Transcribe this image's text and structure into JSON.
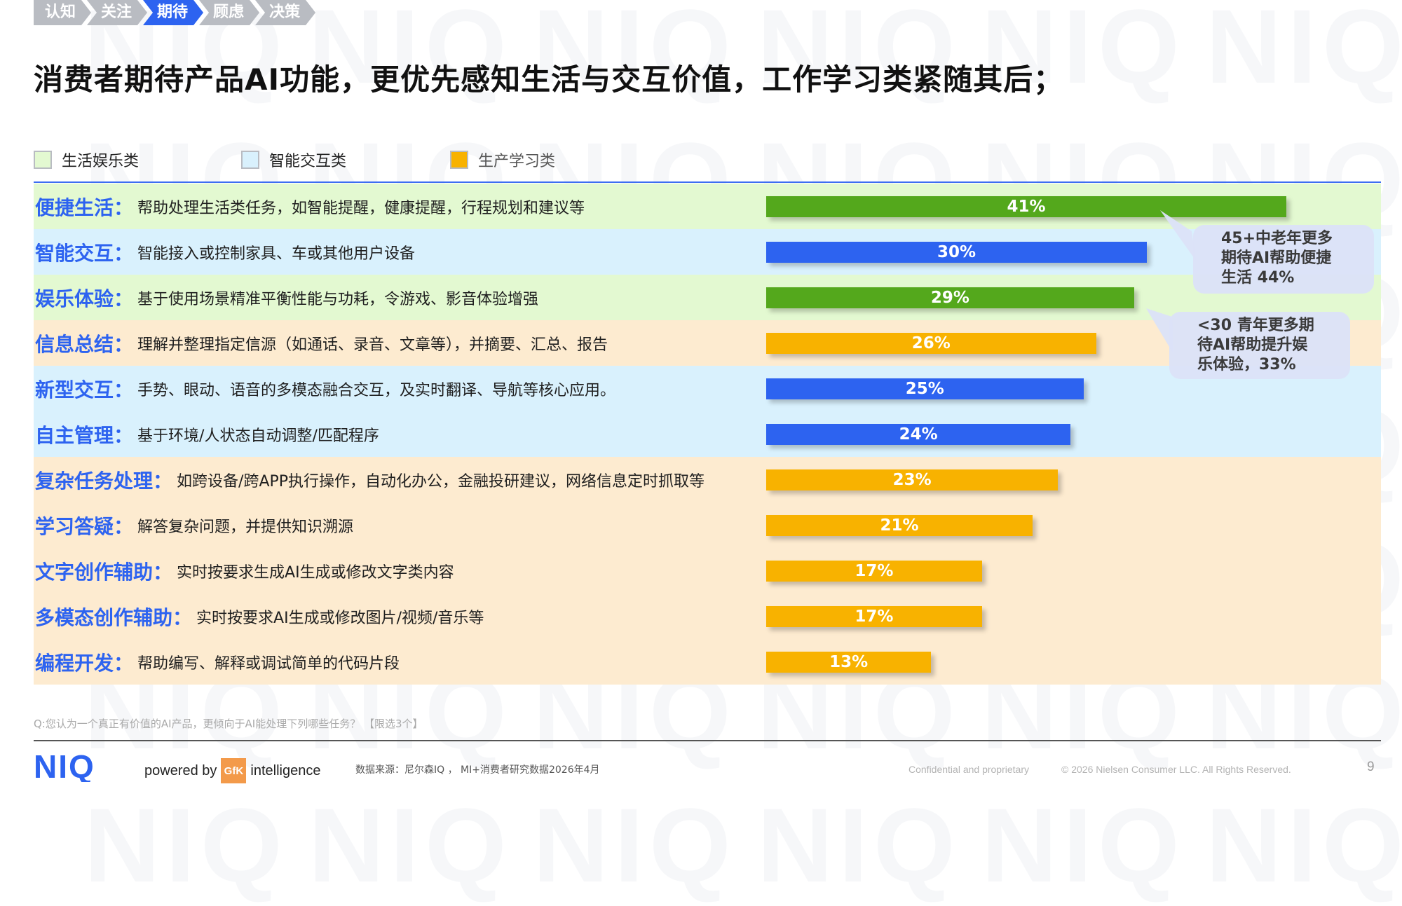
{
  "breadcrumb": {
    "steps": [
      {
        "label": "认知",
        "active": false
      },
      {
        "label": "关注",
        "active": false
      },
      {
        "label": "期待",
        "active": true
      },
      {
        "label": "顾虑",
        "active": false
      },
      {
        "label": "决策",
        "active": false
      }
    ]
  },
  "watermark_text": "NIQ",
  "page": {
    "title": "消费者期待产品AI功能，更优先感知生活与交互价值，工作学习类紧随其后；",
    "question": "Q:您认为一个真正有价值的AI产品，更倾向于AI能处理下列哪些任务？ 【限选3个】",
    "source": "数据来源：尼尔森IQ ， MI+消费者研究数据2026年4月",
    "confidential": "Confidential and proprietary",
    "copyright": "© 2026 Nielsen Consumer LLC. All Rights Reserved.",
    "page_number": "9"
  },
  "brand": {
    "logo_text": "NIQ",
    "powered_by": "powered by",
    "gfk": "GfK",
    "intelligence": "intelligence"
  },
  "colors": {
    "life": "#54a81c",
    "interaction": "#2d63f0",
    "work": "#f8b200",
    "life_bg": "#e3f9d1",
    "interaction_bg": "#d9f1fd",
    "work_bg": "#fdebd0",
    "accent": "#2d63f0"
  },
  "legend": [
    {
      "label": "生活娱乐类",
      "category": "life"
    },
    {
      "label": "智能交互类",
      "category": "interaction"
    },
    {
      "label": "生产学习类",
      "category": "work"
    }
  ],
  "chart_data": {
    "type": "bar",
    "orientation": "horizontal",
    "unit": "%",
    "xlim": [
      0,
      45
    ],
    "grid": false,
    "legend_position": "top-left",
    "rows": [
      {
        "name": "便捷生活",
        "desc": "帮助处理生活类任务，如智能提醒，健康提醒，行程规划和建议等",
        "value": 41,
        "label": "41%",
        "category": "life"
      },
      {
        "name": "智能交互",
        "desc": "智能接入或控制家具、车或其他用户设备",
        "value": 30,
        "label": "30%",
        "category": "interaction"
      },
      {
        "name": "娱乐体验",
        "desc": "基于使用场景精准平衡性能与功耗，令游戏、影音体验增强",
        "value": 29,
        "label": "29%",
        "category": "life"
      },
      {
        "name": "信息总结",
        "desc": "理解并整理指定信源（如通话、录音、文章等），并摘要、汇总、报告",
        "value": 26,
        "label": "26%",
        "category": "work"
      },
      {
        "name": "新型交互",
        "desc": "手势、眼动、语音的多模态融合交互，及实时翻译、导航等核心应用。",
        "value": 25,
        "label": "25%",
        "category": "interaction"
      },
      {
        "name": "自主管理",
        "desc": "基于环境/人状态自动调整/匹配程序",
        "value": 24,
        "label": "24%",
        "category": "interaction"
      },
      {
        "name": "复杂任务处理",
        "desc": "如跨设备/跨APP执行操作，自动化办公，金融投研建议，网络信息定时抓取等",
        "value": 23,
        "label": "23%",
        "category": "work"
      },
      {
        "name": "学习答疑",
        "desc": "解答复杂问题，并提供知识溯源",
        "value": 21,
        "label": "21%",
        "category": "work"
      },
      {
        "name": "文字创作辅助",
        "desc": "实时按要求生成AI生成或修改文字类内容",
        "value": 17,
        "label": "17%",
        "category": "work"
      },
      {
        "name": "多模态创作辅助",
        "desc": "实时按要求AI生成或修改图片/视频/音乐等",
        "value": 17,
        "label": "17%",
        "category": "work"
      },
      {
        "name": "编程开发",
        "desc": "帮助编写、解释或调试简单的代码片段",
        "value": 13,
        "label": "13%",
        "category": "work"
      }
    ]
  },
  "callouts": [
    {
      "lines": [
        "45+中老年更多",
        "期待AI帮助便捷",
        "生活 44%"
      ],
      "row": "便捷生活"
    },
    {
      "lines": [
        "<30 青年更多期",
        "待AI帮助提升娱",
        "乐体验，33%"
      ],
      "row": "娱乐体验"
    }
  ]
}
